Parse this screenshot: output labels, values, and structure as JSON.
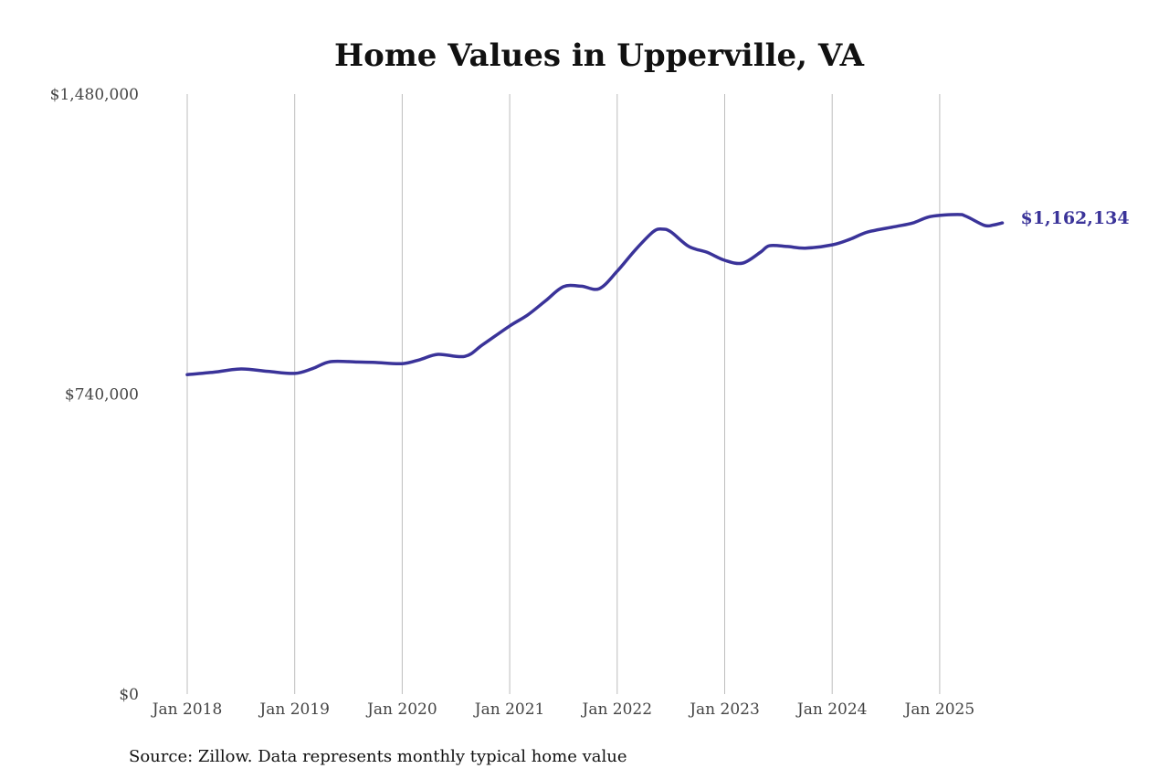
{
  "chart_data": {
    "type": "line",
    "title": "Home Values in Upperville, VA",
    "xlabel": "",
    "ylabel": "",
    "ylim": [
      0,
      1480000
    ],
    "y_ticks": [
      "$0",
      "$740,000",
      "$1,480,000"
    ],
    "y_tick_values": [
      0,
      740000,
      1480000
    ],
    "x_ticks": [
      "Jan 2018",
      "Jan 2019",
      "Jan 2020",
      "Jan 2021",
      "Jan 2022",
      "Jan 2023",
      "Jan 2024",
      "Jan 2025"
    ],
    "x_tick_dates": [
      "2018-01",
      "2019-01",
      "2020-01",
      "2021-01",
      "2022-01",
      "2023-01",
      "2024-01",
      "2025-01"
    ],
    "grid": "vertical",
    "line_color": "#3a3399",
    "series": [
      {
        "x": [
          "2018-01",
          "2018-04",
          "2018-07",
          "2018-10",
          "2019-01",
          "2019-03",
          "2019-05",
          "2019-08",
          "2019-10",
          "2020-01",
          "2020-03",
          "2020-05",
          "2020-08",
          "2020-10",
          "2021-01",
          "2021-03",
          "2021-05",
          "2021-07",
          "2021-09",
          "2021-11",
          "2022-01",
          "2022-03",
          "2022-05",
          "2022-06",
          "2022-07",
          "2022-09",
          "2022-11",
          "2023-01",
          "2023-03",
          "2023-05",
          "2023-06",
          "2023-08",
          "2023-10",
          "2024-01",
          "2024-03",
          "2024-05",
          "2024-08",
          "2024-10",
          "2024-12",
          "2025-03",
          "2025-04",
          "2025-06",
          "2025-07",
          "2025-08"
        ],
        "values": [
          788000,
          794000,
          802000,
          796000,
          791000,
          803000,
          820000,
          819000,
          818000,
          815000,
          825000,
          838000,
          833000,
          862000,
          908000,
          935000,
          970000,
          1005000,
          1006000,
          1000000,
          1043000,
          1095000,
          1140000,
          1147000,
          1140000,
          1104000,
          1090000,
          1070000,
          1063000,
          1090000,
          1106000,
          1104000,
          1100000,
          1108000,
          1122000,
          1140000,
          1153000,
          1162000,
          1178000,
          1183000,
          1178000,
          1156000,
          1157000,
          1162134
        ]
      }
    ],
    "end_label": "$1,162,134"
  },
  "source_note": "Source: Zillow. Data represents monthly typical home value"
}
